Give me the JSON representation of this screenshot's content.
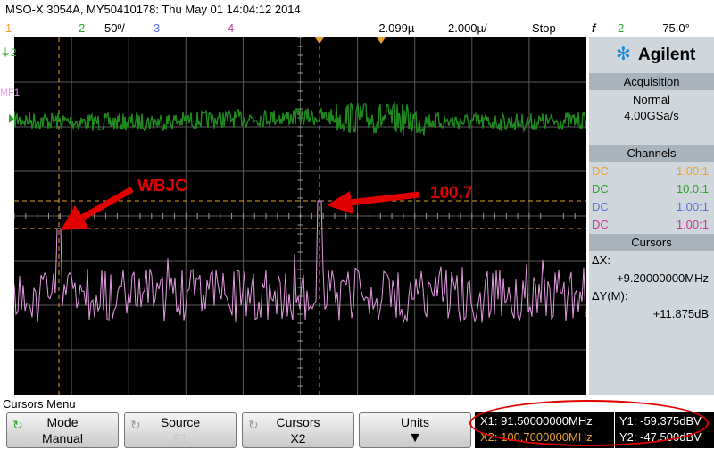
{
  "header": {
    "title": "MSO-X 3054A, MY50410178: Thu May 01 14:04:12 2014"
  },
  "channel_bar": {
    "ch1": "1",
    "ch2": "2",
    "ch2_scale": "50º/",
    "ch3": "3",
    "ch4": "4",
    "time_offset": "-2.099µ",
    "time_scale": "2.000µ/",
    "run_state": "Stop",
    "trigger_icon": "f",
    "trigger_ch": "2",
    "trigger_level": "-75.0°"
  },
  "screen_labels": {
    "ch2_marker": "2",
    "math_marker": "F1"
  },
  "annotations": {
    "left_label": "WBJC",
    "right_label": "100.7"
  },
  "panel": {
    "brand": "Agilent",
    "acquisition_title": "Acquisition",
    "acq_mode": "Normal",
    "acq_rate": "4.00GSa/s",
    "channels_title": "Channels",
    "channels": [
      {
        "coupling": "DC",
        "ratio": "1.00:1",
        "color": "#f0a030"
      },
      {
        "coupling": "DC",
        "ratio": "10.0:1",
        "color": "#2aa52a"
      },
      {
        "coupling": "DC",
        "ratio": "1.00:1",
        "color": "#5a6ee0"
      },
      {
        "coupling": "DC",
        "ratio": "1.00:1",
        "color": "#d0309a"
      }
    ],
    "cursors_title": "Cursors",
    "dx_label": "ΔX:",
    "dx_value": "+9.20000000MHz",
    "dy_label": "ΔY(M):",
    "dy_value": "+11.875dB"
  },
  "menu": {
    "title": "Cursors Menu",
    "softkeys": [
      {
        "label": "Mode",
        "value": "Manual"
      },
      {
        "label": "Source",
        "value": "F1"
      },
      {
        "label": "Cursors",
        "value": "X2"
      },
      {
        "label": "Units",
        "value": ""
      }
    ]
  },
  "cursor_readout": {
    "x1": "X1: 91.50000000MHz",
    "x2": "X2: 100.7000000MHz",
    "y1": "Y1: -59.375dBV",
    "y2": "Y2: -47.500dBV"
  },
  "colors": {
    "ch1": "#f0a030",
    "ch2": "#1f8a1f",
    "ch3": "#5a6ee0",
    "ch4": "#c040a0",
    "math": "#e39be0",
    "cursor": "#e6a030",
    "annotation": "#e00000"
  }
}
